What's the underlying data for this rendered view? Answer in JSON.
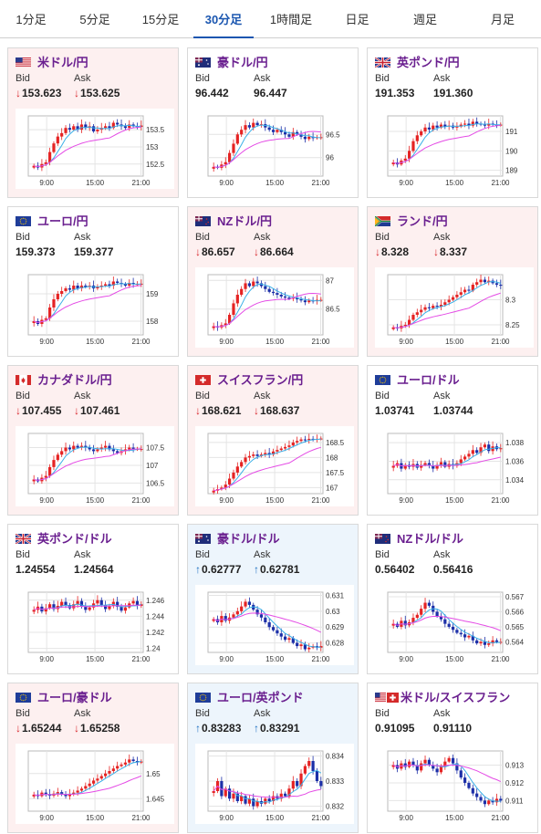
{
  "tabs": [
    {
      "label": "1分足",
      "active": false
    },
    {
      "label": "5分足",
      "active": false
    },
    {
      "label": "15分足",
      "active": false
    },
    {
      "label": "30分足",
      "active": true
    },
    {
      "label": "1時間足",
      "active": false
    },
    {
      "label": "日足",
      "active": false
    },
    {
      "label": "週足",
      "active": false
    },
    {
      "label": "月足",
      "active": false
    }
  ],
  "labels": {
    "bid": "Bid",
    "ask": "Ask"
  },
  "colors": {
    "pair_text": "#6a1f8f",
    "down_arrow": "#d9262c",
    "up_arrow": "#1d6fc1",
    "down_card_bg": "#fdf0f0",
    "up_card_bg": "#edf5fc",
    "candle_up": "#e52323",
    "candle_down": "#1c2fa8",
    "ma_short": "#3ab0e8",
    "ma_long": "#e44be5"
  },
  "cards": [
    {
      "pair": "米ドル/円",
      "flag": "us-flag",
      "trend": "down",
      "bid": "153.623",
      "ask": "153.625",
      "chart_data": {
        "type": "candlestick",
        "x_ticks": [
          "9:00",
          "15:00",
          "21:00"
        ],
        "y_ticks": [
          {
            "v": 152.5,
            "label": "152.5"
          },
          {
            "v": 153,
            "label": "153"
          },
          {
            "v": 153.5,
            "label": "153.5"
          }
        ],
        "ylim": [
          152.15,
          153.9
        ],
        "closes": [
          152.45,
          152.4,
          152.5,
          152.55,
          152.85,
          153.1,
          153.3,
          153.4,
          153.55,
          153.5,
          153.6,
          153.5,
          153.65,
          153.55,
          153.6,
          153.45,
          153.5,
          153.55,
          153.6,
          153.55,
          153.7,
          153.65,
          153.6,
          153.55,
          153.65,
          153.6,
          153.58,
          153.62
        ]
      }
    },
    {
      "pair": "豪ドル/円",
      "flag": "au-flag",
      "trend": "flat",
      "bid": "96.442",
      "ask": "96.447",
      "chart_data": {
        "type": "candlestick",
        "x_ticks": [
          "9:00",
          "15:00",
          "21:00"
        ],
        "y_ticks": [
          {
            "v": 96,
            "label": "96"
          },
          {
            "v": 96.5,
            "label": "96.5"
          }
        ],
        "ylim": [
          95.6,
          96.9
        ],
        "closes": [
          95.8,
          95.78,
          95.85,
          95.9,
          96.1,
          96.3,
          96.5,
          96.6,
          96.7,
          96.65,
          96.75,
          96.7,
          96.72,
          96.65,
          96.6,
          96.55,
          96.6,
          96.55,
          96.5,
          96.45,
          96.55,
          96.5,
          96.45,
          96.4,
          96.45,
          96.42,
          96.44,
          96.44
        ]
      }
    },
    {
      "pair": "英ポンド/円",
      "flag": "uk-flag",
      "trend": "flat",
      "bid": "191.353",
      "ask": "191.360",
      "chart_data": {
        "type": "candlestick",
        "x_ticks": [
          "9:00",
          "15:00",
          "21:00"
        ],
        "y_ticks": [
          {
            "v": 189,
            "label": "189"
          },
          {
            "v": 190,
            "label": "190"
          },
          {
            "v": 191,
            "label": "191"
          }
        ],
        "ylim": [
          188.7,
          191.8
        ],
        "closes": [
          189.4,
          189.3,
          189.5,
          189.6,
          190.0,
          190.5,
          190.8,
          191.0,
          191.2,
          191.1,
          191.3,
          191.2,
          191.35,
          191.25,
          191.3,
          191.2,
          191.25,
          191.35,
          191.4,
          191.3,
          191.5,
          191.4,
          191.35,
          191.3,
          191.4,
          191.35,
          191.33,
          191.35
        ]
      }
    },
    {
      "pair": "ユーロ/円",
      "flag": "eu-flag",
      "trend": "flat",
      "bid": "159.373",
      "ask": "159.377",
      "chart_data": {
        "type": "candlestick",
        "x_ticks": [
          "9:00",
          "15:00",
          "21:00"
        ],
        "y_ticks": [
          {
            "v": 158,
            "label": "158"
          },
          {
            "v": 159,
            "label": "159"
          }
        ],
        "ylim": [
          157.5,
          159.7
        ],
        "closes": [
          158.0,
          157.9,
          158.05,
          158.1,
          158.5,
          158.8,
          159.0,
          159.1,
          159.2,
          159.15,
          159.3,
          159.2,
          159.3,
          159.25,
          159.3,
          159.2,
          159.25,
          159.3,
          159.35,
          159.3,
          159.45,
          159.4,
          159.35,
          159.3,
          159.4,
          159.35,
          159.36,
          159.37
        ]
      }
    },
    {
      "pair": "NZドル/円",
      "flag": "nz-flag",
      "trend": "down",
      "bid": "86.657",
      "ask": "86.664",
      "chart_data": {
        "type": "candlestick",
        "x_ticks": [
          "9:00",
          "15:00",
          "21:00"
        ],
        "y_ticks": [
          {
            "v": 86.5,
            "label": "86.5"
          },
          {
            "v": 87,
            "label": "87"
          }
        ],
        "ylim": [
          86.05,
          87.1
        ],
        "closes": [
          86.2,
          86.18,
          86.22,
          86.25,
          86.4,
          86.6,
          86.75,
          86.85,
          86.95,
          86.9,
          86.98,
          86.95,
          86.9,
          86.85,
          86.8,
          86.78,
          86.75,
          86.72,
          86.7,
          86.68,
          86.7,
          86.67,
          86.65,
          86.62,
          86.65,
          86.64,
          86.66,
          86.66
        ]
      }
    },
    {
      "pair": "ランド/円",
      "flag": "za-flag",
      "trend": "down",
      "bid": "8.328",
      "ask": "8.337",
      "chart_data": {
        "type": "candlestick",
        "x_ticks": [
          "9:00",
          "15:00",
          "21:00"
        ],
        "y_ticks": [
          {
            "v": 8.25,
            "label": "8.25"
          },
          {
            "v": 8.3,
            "label": "8.3"
          }
        ],
        "ylim": [
          8.23,
          8.35
        ],
        "closes": [
          8.245,
          8.243,
          8.248,
          8.25,
          8.26,
          8.27,
          8.275,
          8.28,
          8.285,
          8.283,
          8.288,
          8.286,
          8.29,
          8.295,
          8.3,
          8.305,
          8.31,
          8.315,
          8.32,
          8.318,
          8.33,
          8.335,
          8.34,
          8.335,
          8.338,
          8.333,
          8.33,
          8.328
        ]
      }
    },
    {
      "pair": "カナダドル/円",
      "flag": "ca-flag",
      "trend": "down",
      "bid": "107.455",
      "ask": "107.461",
      "chart_data": {
        "type": "candlestick",
        "x_ticks": [
          "9:00",
          "15:00",
          "21:00"
        ],
        "y_ticks": [
          {
            "v": 106.5,
            "label": "106.5"
          },
          {
            "v": 107,
            "label": "107"
          },
          {
            "v": 107.5,
            "label": "107.5"
          }
        ],
        "ylim": [
          106.2,
          107.9
        ],
        "closes": [
          106.6,
          106.55,
          106.65,
          106.7,
          106.95,
          107.15,
          107.3,
          107.4,
          107.5,
          107.45,
          107.55,
          107.5,
          107.55,
          107.5,
          107.45,
          107.4,
          107.45,
          107.5,
          107.55,
          107.45,
          107.4,
          107.35,
          107.4,
          107.45,
          107.5,
          107.45,
          107.46,
          107.46
        ]
      }
    },
    {
      "pair": "スイスフラン/円",
      "flag": "ch-flag",
      "trend": "down",
      "bid": "168.621",
      "ask": "168.637",
      "chart_data": {
        "type": "candlestick",
        "x_ticks": [
          "9:00",
          "15:00",
          "21:00"
        ],
        "y_ticks": [
          {
            "v": 167,
            "label": "167"
          },
          {
            "v": 167.5,
            "label": "167.5"
          },
          {
            "v": 168,
            "label": "168"
          },
          {
            "v": 168.5,
            "label": "168.5"
          }
        ],
        "ylim": [
          166.8,
          168.8
        ],
        "closes": [
          166.9,
          166.95,
          167.0,
          167.1,
          167.3,
          167.5,
          167.7,
          167.85,
          168.0,
          168.05,
          168.1,
          168.05,
          168.1,
          168.15,
          168.1,
          168.2,
          168.25,
          168.3,
          168.35,
          168.4,
          168.5,
          168.55,
          168.6,
          168.58,
          168.62,
          168.6,
          168.62,
          168.63
        ]
      }
    },
    {
      "pair": "ユーロ/ドル",
      "flag": "eu-flag",
      "trend": "flat",
      "bid": "1.03741",
      "ask": "1.03744",
      "chart_data": {
        "type": "candlestick",
        "x_ticks": [
          "9:00",
          "15:00",
          "21:00"
        ],
        "y_ticks": [
          {
            "v": 1.034,
            "label": "1.034"
          },
          {
            "v": 1.036,
            "label": "1.036"
          },
          {
            "v": 1.038,
            "label": "1.038"
          }
        ],
        "ylim": [
          1.0325,
          1.039
        ],
        "closes": [
          1.0355,
          1.0358,
          1.0352,
          1.0356,
          1.0354,
          1.0357,
          1.0353,
          1.0356,
          1.0358,
          1.0355,
          1.0352,
          1.0356,
          1.0359,
          1.0354,
          1.0357,
          1.0355,
          1.0358,
          1.0362,
          1.0365,
          1.0368,
          1.0372,
          1.0369,
          1.0375,
          1.0378,
          1.0371,
          1.0376,
          1.0373,
          1.0374
        ]
      }
    },
    {
      "pair": "英ポンド/ドル",
      "flag": "uk-flag",
      "trend": "flat",
      "bid": "1.24554",
      "ask": "1.24564",
      "chart_data": {
        "type": "candlestick",
        "x_ticks": [
          "9:00",
          "15:00",
          "21:00"
        ],
        "y_ticks": [
          {
            "v": 1.24,
            "label": "1.24"
          },
          {
            "v": 1.242,
            "label": "1.242"
          },
          {
            "v": 1.244,
            "label": "1.244"
          },
          {
            "v": 1.246,
            "label": "1.246"
          }
        ],
        "ylim": [
          1.2395,
          1.247
        ],
        "closes": [
          1.2448,
          1.2452,
          1.2446,
          1.245,
          1.2455,
          1.2449,
          1.2453,
          1.2458,
          1.2454,
          1.245,
          1.2455,
          1.2459,
          1.2452,
          1.2448,
          1.2451,
          1.2456,
          1.246,
          1.2454,
          1.2449,
          1.2453,
          1.2458,
          1.2452,
          1.2447,
          1.2451,
          1.2456,
          1.2459,
          1.2453,
          1.2455
        ]
      }
    },
    {
      "pair": "豪ドル/ドル",
      "flag": "au-flag",
      "trend": "up",
      "bid": "0.62777",
      "ask": "0.62781",
      "chart_data": {
        "type": "candlestick",
        "x_ticks": [
          "9:00",
          "15:00",
          "21:00"
        ],
        "y_ticks": [
          {
            "v": 0.628,
            "label": "0.628"
          },
          {
            "v": 0.629,
            "label": "0.629"
          },
          {
            "v": 0.63,
            "label": "0.63"
          },
          {
            "v": 0.631,
            "label": "0.631"
          }
        ],
        "ylim": [
          0.6274,
          0.6312
        ],
        "closes": [
          0.6295,
          0.6293,
          0.6297,
          0.6294,
          0.6296,
          0.6298,
          0.63,
          0.6303,
          0.6306,
          0.6304,
          0.6301,
          0.6298,
          0.6296,
          0.6293,
          0.629,
          0.6288,
          0.6286,
          0.6284,
          0.6282,
          0.6283,
          0.628,
          0.6278,
          0.6279,
          0.6276,
          0.6277,
          0.6278,
          0.6277,
          0.6278
        ]
      }
    },
    {
      "pair": "NZドル/ドル",
      "flag": "nz-flag",
      "trend": "flat",
      "bid": "0.56402",
      "ask": "0.56416",
      "chart_data": {
        "type": "candlestick",
        "x_ticks": [
          "9:00",
          "15:00",
          "21:00"
        ],
        "y_ticks": [
          {
            "v": 0.564,
            "label": "0.564"
          },
          {
            "v": 0.565,
            "label": "0.565"
          },
          {
            "v": 0.566,
            "label": "0.566"
          },
          {
            "v": 0.567,
            "label": "0.567"
          }
        ],
        "ylim": [
          0.5633,
          0.5673
        ],
        "closes": [
          0.5652,
          0.565,
          0.5654,
          0.5651,
          0.5653,
          0.5656,
          0.5658,
          0.5662,
          0.5666,
          0.5664,
          0.566,
          0.5657,
          0.5655,
          0.5652,
          0.565,
          0.5648,
          0.5646,
          0.5645,
          0.5643,
          0.5644,
          0.5641,
          0.5639,
          0.564,
          0.5638,
          0.5639,
          0.5641,
          0.564,
          0.564
        ]
      }
    },
    {
      "pair": "ユーロ/豪ドル",
      "flag": "eu-flag",
      "trend": "down",
      "bid": "1.65244",
      "ask": "1.65258",
      "chart_data": {
        "type": "candlestick",
        "x_ticks": [
          "9:00",
          "15:00",
          "21:00"
        ],
        "y_ticks": [
          {
            "v": 1.645,
            "label": "1.645"
          },
          {
            "v": 1.65,
            "label": "1.65"
          }
        ],
        "ylim": [
          1.6425,
          1.6545
        ],
        "closes": [
          1.6458,
          1.6455,
          1.6462,
          1.6459,
          1.6456,
          1.646,
          1.6463,
          1.6458,
          1.6455,
          1.6459,
          1.6462,
          1.6466,
          1.647,
          1.6475,
          1.648,
          1.6486,
          1.649,
          1.6495,
          1.65,
          1.6505,
          1.651,
          1.6515,
          1.6518,
          1.6522,
          1.6528,
          1.6525,
          1.6522,
          1.6524
        ]
      }
    },
    {
      "pair": "ユーロ/英ポンド",
      "flag": "eu-flag",
      "trend": "up",
      "bid": "0.83283",
      "ask": "0.83291",
      "chart_data": {
        "type": "candlestick",
        "x_ticks": [
          "9:00",
          "15:00",
          "21:00"
        ],
        "y_ticks": [
          {
            "v": 0.832,
            "label": "0.832"
          },
          {
            "v": 0.833,
            "label": "0.833"
          },
          {
            "v": 0.834,
            "label": "0.834"
          }
        ],
        "ylim": [
          0.8318,
          0.8342
        ],
        "closes": [
          0.8326,
          0.833,
          0.8324,
          0.8327,
          0.8323,
          0.8325,
          0.8322,
          0.8324,
          0.8321,
          0.8323,
          0.832,
          0.8322,
          0.8321,
          0.8323,
          0.8322,
          0.8324,
          0.8323,
          0.8325,
          0.8324,
          0.8327,
          0.833,
          0.8328,
          0.8333,
          0.8336,
          0.8338,
          0.8334,
          0.833,
          0.8328
        ]
      }
    },
    {
      "pair": "米ドル/スイスフラン",
      "flag": "us-ch-flag",
      "trend": "flat",
      "bid": "0.91095",
      "ask": "0.91110",
      "chart_data": {
        "type": "candlestick",
        "x_ticks": [
          "9:00",
          "15:00",
          "21:00"
        ],
        "y_ticks": [
          {
            "v": 0.911,
            "label": "0.911"
          },
          {
            "v": 0.912,
            "label": "0.912"
          },
          {
            "v": 0.913,
            "label": "0.913"
          }
        ],
        "ylim": [
          0.9104,
          0.9138
        ],
        "closes": [
          0.913,
          0.9128,
          0.9131,
          0.9129,
          0.9132,
          0.913,
          0.9127,
          0.9131,
          0.9133,
          0.913,
          0.9128,
          0.9126,
          0.9129,
          0.9132,
          0.9134,
          0.9131,
          0.9127,
          0.9123,
          0.912,
          0.9117,
          0.9114,
          0.9112,
          0.911,
          0.9108,
          0.911,
          0.9109,
          0.9111,
          0.911
        ]
      }
    }
  ]
}
